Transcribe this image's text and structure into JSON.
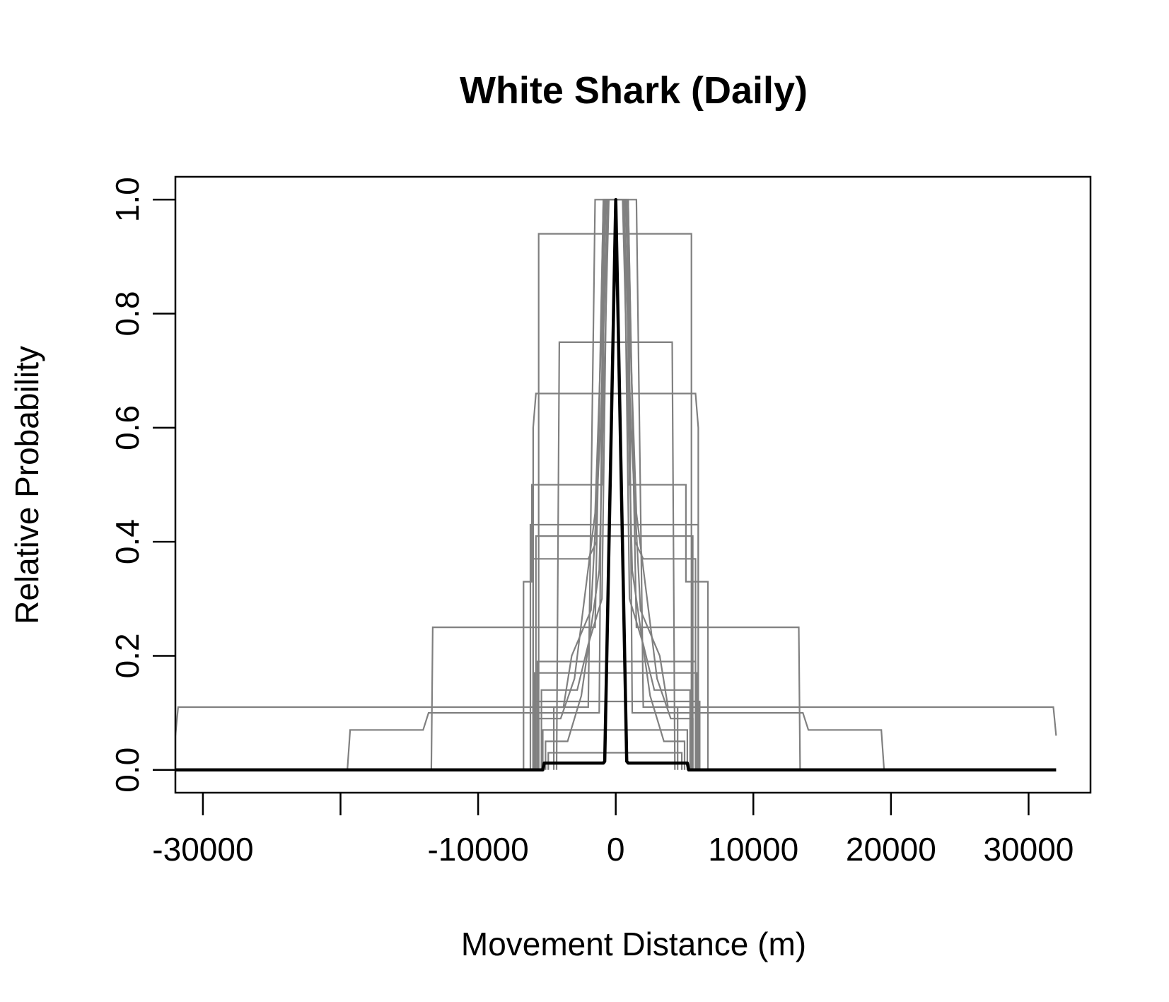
{
  "chart_data": {
    "type": "line",
    "title": "White Shark (Daily)",
    "xlabel": "Movement Distance (m)",
    "ylabel": "Relative Probability",
    "xlim": [
      -32000,
      34500
    ],
    "ylim": [
      -0.04,
      1.04
    ],
    "x_ticks": [
      -30000,
      -20000,
      -10000,
      0,
      10000,
      20000,
      30000
    ],
    "x_tick_labels": [
      "-30000",
      "",
      "-10000",
      "0",
      "10000",
      "20000",
      "30000"
    ],
    "y_ticks": [
      0.0,
      0.2,
      0.4,
      0.6,
      0.8,
      1.0
    ],
    "y_tick_labels": [
      "0.0",
      "0.2",
      "0.4",
      "0.6",
      "0.8",
      "1.0"
    ],
    "grid": false,
    "colors": {
      "individual": "#808080",
      "mean": "#000000"
    },
    "series": [
      {
        "color": "#808080",
        "points": [
          [
            -32000,
            0.06
          ],
          [
            -31800,
            0.11
          ],
          [
            -2000,
            0.11
          ],
          [
            -1500,
            1.0
          ],
          [
            1500,
            1.0
          ],
          [
            2000,
            0.11
          ],
          [
            31800,
            0.11
          ],
          [
            32000,
            0.06
          ]
        ]
      },
      {
        "color": "#808080",
        "points": [
          [
            -19500,
            0
          ],
          [
            -19300,
            0.07
          ],
          [
            -14000,
            0.07
          ],
          [
            -13600,
            0.1
          ],
          [
            -1200,
            0.1
          ],
          [
            -900,
            1.0
          ],
          [
            900,
            1.0
          ],
          [
            1200,
            0.1
          ],
          [
            13600,
            0.1
          ],
          [
            14000,
            0.07
          ],
          [
            19300,
            0.07
          ],
          [
            19500,
            0
          ]
        ]
      },
      {
        "color": "#808080",
        "points": [
          [
            -13400,
            0
          ],
          [
            -13300,
            0.25
          ],
          [
            -1500,
            0.25
          ],
          [
            -900,
            1.0
          ],
          [
            900,
            1.0
          ],
          [
            1500,
            0.25
          ],
          [
            13300,
            0.25
          ],
          [
            13400,
            0
          ]
        ]
      },
      {
        "color": "#808080",
        "points": [
          [
            -5600,
            0
          ],
          [
            -5600,
            0.94
          ],
          [
            5500,
            0.94
          ],
          [
            5500,
            0
          ]
        ]
      },
      {
        "color": "#808080",
        "points": [
          [
            -4300,
            0.0
          ],
          [
            -4100,
            0.75
          ],
          [
            4100,
            0.75
          ],
          [
            4300,
            0.0
          ]
        ]
      },
      {
        "color": "#808080",
        "points": [
          [
            -6000,
            0.0
          ],
          [
            -6000,
            0.6
          ],
          [
            -5800,
            0.66
          ],
          [
            5800,
            0.66
          ],
          [
            6000,
            0.6
          ],
          [
            6000,
            0.0
          ]
        ]
      },
      {
        "color": "#808080",
        "points": [
          [
            -6700,
            0
          ],
          [
            -6700,
            0.33
          ],
          [
            -6100,
            0.33
          ],
          [
            -6100,
            0.5
          ],
          [
            -1000,
            0.5
          ],
          [
            -800,
            1.0
          ],
          [
            800,
            1.0
          ],
          [
            1000,
            0.5
          ],
          [
            5100,
            0.5
          ],
          [
            5100,
            0.33
          ],
          [
            6700,
            0.33
          ],
          [
            6700,
            0
          ]
        ]
      },
      {
        "color": "#808080",
        "points": [
          [
            -6200,
            0
          ],
          [
            -6200,
            0.43
          ],
          [
            6000,
            0.43
          ],
          [
            6000,
            0
          ]
        ]
      },
      {
        "color": "#808080",
        "points": [
          [
            -5800,
            0
          ],
          [
            -5800,
            0.41
          ],
          [
            5600,
            0.41
          ],
          [
            5600,
            0
          ]
        ]
      },
      {
        "color": "#808080",
        "points": [
          [
            -6000,
            0
          ],
          [
            -6000,
            0.37
          ],
          [
            -2000,
            0.37
          ],
          [
            -1400,
            0.4
          ],
          [
            -900,
            1.0
          ],
          [
            900,
            1.0
          ],
          [
            1400,
            0.4
          ],
          [
            2000,
            0.37
          ],
          [
            5800,
            0.37
          ],
          [
            5800,
            0
          ]
        ]
      },
      {
        "color": "#808080",
        "points": [
          [
            -5700,
            0
          ],
          [
            -5700,
            0.19
          ],
          [
            5800,
            0.19
          ],
          [
            5800,
            0
          ]
        ]
      },
      {
        "color": "#808080",
        "points": [
          [
            -5900,
            0
          ],
          [
            -5900,
            0.17
          ],
          [
            5900,
            0.17
          ],
          [
            5900,
            0
          ]
        ]
      },
      {
        "color": "#808080",
        "points": [
          [
            -5400,
            0
          ],
          [
            -5400,
            0.14
          ],
          [
            -2800,
            0.14
          ],
          [
            -2000,
            0.22
          ],
          [
            -1000,
            0.3
          ],
          [
            -600,
            1.0
          ],
          [
            600,
            1.0
          ],
          [
            1000,
            0.3
          ],
          [
            2000,
            0.22
          ],
          [
            2800,
            0.14
          ],
          [
            5400,
            0.14
          ],
          [
            5400,
            0
          ]
        ]
      },
      {
        "color": "#808080",
        "points": [
          [
            -6000,
            0
          ],
          [
            -6000,
            0.12
          ],
          [
            6100,
            0.12
          ],
          [
            6100,
            0
          ]
        ]
      },
      {
        "color": "#808080",
        "points": [
          [
            -5600,
            0
          ],
          [
            -5600,
            0.09
          ],
          [
            -4000,
            0.09
          ],
          [
            -3000,
            0.16
          ],
          [
            -1500,
            0.45
          ],
          [
            -700,
            1.0
          ],
          [
            700,
            1.0
          ],
          [
            1500,
            0.45
          ],
          [
            3000,
            0.16
          ],
          [
            4000,
            0.09
          ],
          [
            5600,
            0.09
          ],
          [
            5600,
            0
          ]
        ]
      },
      {
        "color": "#808080",
        "points": [
          [
            -5300,
            0
          ],
          [
            -5300,
            0.07
          ],
          [
            5200,
            0.07
          ],
          [
            5200,
            0
          ]
        ]
      },
      {
        "color": "#808080",
        "points": [
          [
            -5100,
            0
          ],
          [
            -5100,
            0.05
          ],
          [
            -3500,
            0.05
          ],
          [
            -2500,
            0.13
          ],
          [
            -1200,
            0.35
          ],
          [
            -500,
            1.0
          ],
          [
            500,
            1.0
          ],
          [
            1200,
            0.35
          ],
          [
            2500,
            0.13
          ],
          [
            3500,
            0.05
          ],
          [
            5000,
            0.05
          ],
          [
            5000,
            0
          ]
        ]
      },
      {
        "color": "#808080",
        "points": [
          [
            -4900,
            0
          ],
          [
            -4900,
            0.03
          ],
          [
            4800,
            0.03
          ],
          [
            4800,
            0
          ]
        ]
      },
      {
        "color": "#808080",
        "points": [
          [
            -4500,
            0
          ],
          [
            -4500,
            0.11
          ],
          [
            -3800,
            0.11
          ],
          [
            -3200,
            0.2
          ],
          [
            -1800,
            0.28
          ],
          [
            -1100,
            0.6
          ],
          [
            -600,
            1.0
          ],
          [
            600,
            1.0
          ],
          [
            1100,
            0.6
          ],
          [
            1800,
            0.28
          ],
          [
            3200,
            0.2
          ],
          [
            3800,
            0.11
          ],
          [
            4500,
            0.11
          ],
          [
            4500,
            0
          ]
        ]
      }
    ],
    "mean_curve": {
      "color": "#000000",
      "points": [
        [
          -32000,
          0
        ],
        [
          -5300,
          0
        ],
        [
          -5200,
          0.012
        ],
        [
          -900,
          0.012
        ],
        [
          -800,
          0.015
        ],
        [
          0,
          1.0
        ],
        [
          800,
          0.015
        ],
        [
          900,
          0.012
        ],
        [
          5200,
          0.012
        ],
        [
          5300,
          0
        ],
        [
          32000,
          0
        ]
      ]
    }
  }
}
